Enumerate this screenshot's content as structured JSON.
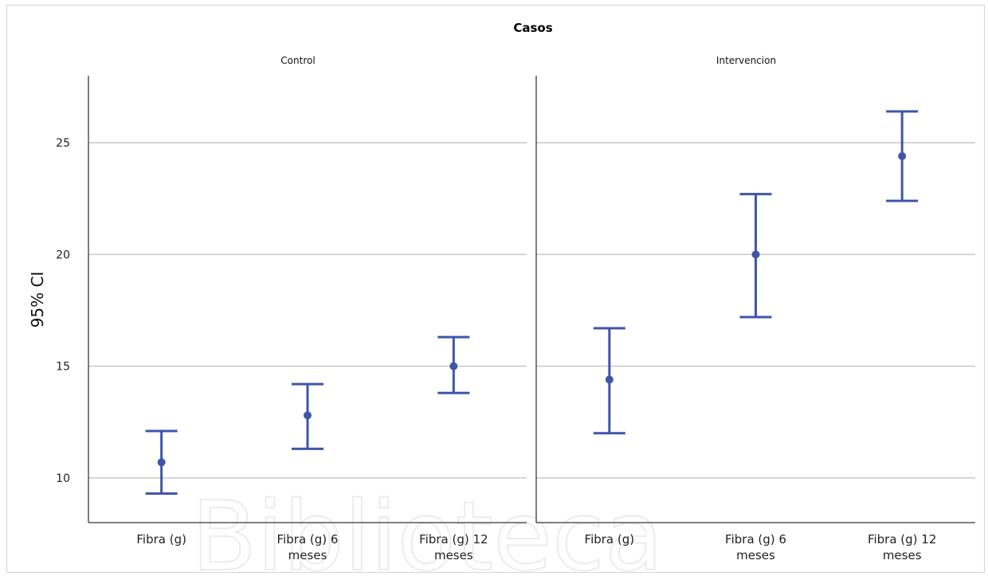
{
  "chart_data": {
    "type": "errorbar",
    "title": "Casos",
    "ylabel": "95% CI",
    "ylim": [
      8,
      28
    ],
    "yticks": [
      10,
      15,
      20,
      25
    ],
    "categories": [
      "Fibra (g)",
      "Fibra (g) 6 meses",
      "Fibra (g) 12 meses"
    ],
    "panels": [
      {
        "name": "Control",
        "points": [
          {
            "mean": 10.7,
            "low": 9.3,
            "high": 12.1
          },
          {
            "mean": 12.8,
            "low": 11.3,
            "high": 14.2
          },
          {
            "mean": 15.0,
            "low": 13.8,
            "high": 16.3
          }
        ]
      },
      {
        "name": "Intervencion",
        "points": [
          {
            "mean": 14.4,
            "low": 12.0,
            "high": 16.7
          },
          {
            "mean": 20.0,
            "low": 17.2,
            "high": 22.7
          },
          {
            "mean": 24.4,
            "low": 22.4,
            "high": 26.4
          }
        ]
      }
    ],
    "grid": true
  },
  "watermark": "Biblioteca"
}
